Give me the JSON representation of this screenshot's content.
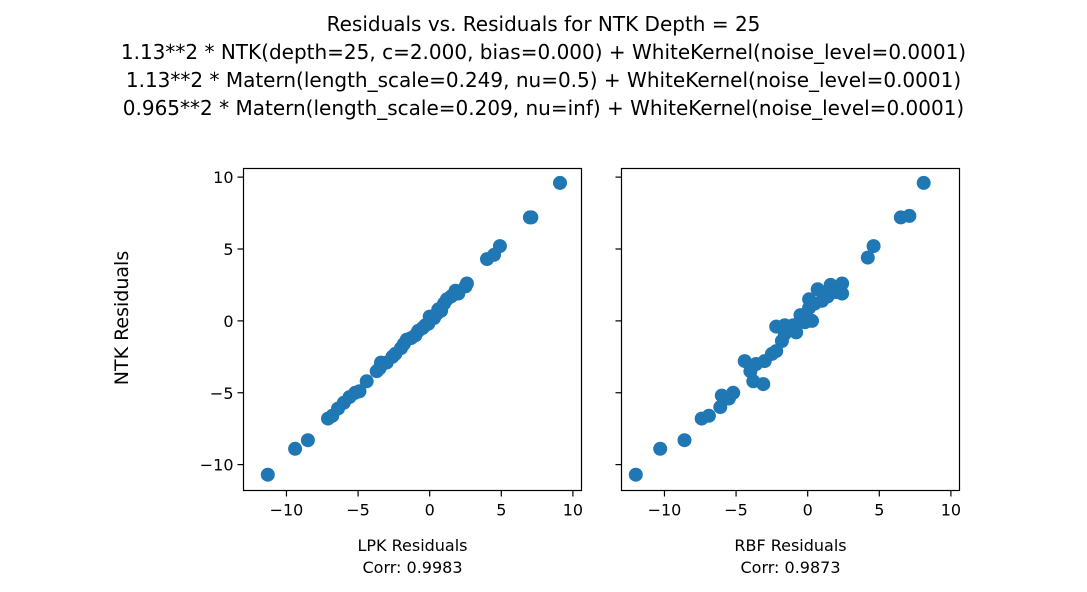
{
  "figure": {
    "title_lines": [
      "Residuals vs. Residuals for NTK Depth = 25",
      "1.13**2 * NTK(depth=25, c=2.000, bias=0.000) + WhiteKernel(noise_level=0.0001)",
      "1.13**2 * Matern(length_scale=0.249, nu=0.5) + WhiteKernel(noise_level=0.0001)",
      "0.965**2 * Matern(length_scale=0.209, nu=inf) + WhiteKernel(noise_level=0.0001)"
    ],
    "ylabel": "NTK Residuals",
    "marker_color": "#1f77b4"
  },
  "chart_data": [
    {
      "type": "scatter",
      "xlabel": "LPK Residuals",
      "corr_label": "Corr: 0.9983",
      "xlim": [
        -13,
        10.6
      ],
      "ylim": [
        -11.8,
        10.6
      ],
      "xticks": [
        -10,
        -5,
        0,
        5,
        10
      ],
      "yticks": [
        -10,
        -5,
        0,
        5,
        10
      ],
      "xtick_labels": [
        "−10",
        "−5",
        "0",
        "5",
        "10"
      ],
      "ytick_labels": [
        "−10",
        "−5",
        "0",
        "5",
        "10"
      ],
      "grid": false,
      "points": [
        [
          -11.3,
          -10.7
        ],
        [
          -9.4,
          -8.9
        ],
        [
          -8.5,
          -8.3
        ],
        [
          -7.1,
          -6.8
        ],
        [
          -6.8,
          -6.6
        ],
        [
          -6.4,
          -6.1
        ],
        [
          -6.0,
          -5.7
        ],
        [
          -5.6,
          -5.3
        ],
        [
          -5.2,
          -5.0
        ],
        [
          -4.9,
          -4.9
        ],
        [
          -4.4,
          -4.2
        ],
        [
          -3.7,
          -3.5
        ],
        [
          -3.5,
          -3.3
        ],
        [
          -3.4,
          -2.9
        ],
        [
          -3.0,
          -2.9
        ],
        [
          -2.6,
          -2.5
        ],
        [
          -2.4,
          -2.3
        ],
        [
          -2.0,
          -1.9
        ],
        [
          -1.8,
          -1.6
        ],
        [
          -1.6,
          -1.3
        ],
        [
          -1.3,
          -1.2
        ],
        [
          -1.0,
          -1.0
        ],
        [
          -0.8,
          -0.7
        ],
        [
          -0.5,
          -0.5
        ],
        [
          -0.3,
          -0.3
        ],
        [
          -0.1,
          -0.2
        ],
        [
          0.0,
          0.3
        ],
        [
          0.3,
          0.2
        ],
        [
          0.5,
          0.5
        ],
        [
          0.6,
          0.8
        ],
        [
          0.8,
          0.7
        ],
        [
          1.0,
          1.2
        ],
        [
          1.2,
          1.5
        ],
        [
          1.5,
          1.7
        ],
        [
          1.8,
          2.1
        ],
        [
          2.0,
          1.9
        ],
        [
          2.5,
          2.4
        ],
        [
          2.6,
          2.6
        ],
        [
          4.0,
          4.3
        ],
        [
          4.5,
          4.6
        ],
        [
          4.9,
          5.2
        ],
        [
          7.0,
          7.2
        ],
        [
          7.1,
          7.2
        ],
        [
          9.1,
          9.6
        ]
      ]
    },
    {
      "type": "scatter",
      "xlabel": "RBF Residuals",
      "corr_label": "Corr: 0.9873",
      "xlim": [
        -13,
        10.6
      ],
      "ylim": [
        -11.8,
        10.6
      ],
      "xticks": [
        -10,
        -5,
        0,
        5,
        10
      ],
      "yticks": [
        -10,
        -5,
        0,
        5,
        10
      ],
      "xtick_labels": [
        "−10",
        "−5",
        "0",
        "5",
        "10"
      ],
      "ytick_labels": [
        "",
        "",
        "",
        "",
        ""
      ],
      "grid": false,
      "points": [
        [
          -12.0,
          -10.7
        ],
        [
          -10.3,
          -8.9
        ],
        [
          -8.6,
          -8.3
        ],
        [
          -7.4,
          -6.8
        ],
        [
          -6.9,
          -6.6
        ],
        [
          -6.1,
          -6.0
        ],
        [
          -6.0,
          -5.2
        ],
        [
          -5.5,
          -5.4
        ],
        [
          -5.2,
          -5.0
        ],
        [
          -4.4,
          -2.8
        ],
        [
          -4.0,
          -3.5
        ],
        [
          -3.8,
          -4.2
        ],
        [
          -3.6,
          -3.0
        ],
        [
          -3.1,
          -4.4
        ],
        [
          -3.0,
          -2.8
        ],
        [
          -2.5,
          -2.3
        ],
        [
          -2.2,
          -2.1
        ],
        [
          -2.2,
          -0.4
        ],
        [
          -1.8,
          -1.4
        ],
        [
          -1.6,
          -0.9
        ],
        [
          -1.6,
          -0.3
        ],
        [
          -1.2,
          -0.5
        ],
        [
          -1.0,
          -0.3
        ],
        [
          -0.8,
          -0.8
        ],
        [
          -0.5,
          0.4
        ],
        [
          -0.2,
          -0.1
        ],
        [
          0.0,
          0.0
        ],
        [
          0.1,
          0.9
        ],
        [
          0.1,
          1.5
        ],
        [
          0.3,
          0.0
        ],
        [
          0.5,
          1.2
        ],
        [
          0.7,
          2.2
        ],
        [
          1.0,
          1.4
        ],
        [
          1.2,
          1.8
        ],
        [
          1.4,
          1.7
        ],
        [
          1.6,
          2.5
        ],
        [
          2.0,
          2.0
        ],
        [
          2.4,
          2.6
        ],
        [
          2.4,
          1.9
        ],
        [
          4.2,
          4.4
        ],
        [
          4.6,
          5.2
        ],
        [
          6.5,
          7.2
        ],
        [
          7.1,
          7.3
        ],
        [
          8.1,
          9.6
        ]
      ]
    }
  ]
}
